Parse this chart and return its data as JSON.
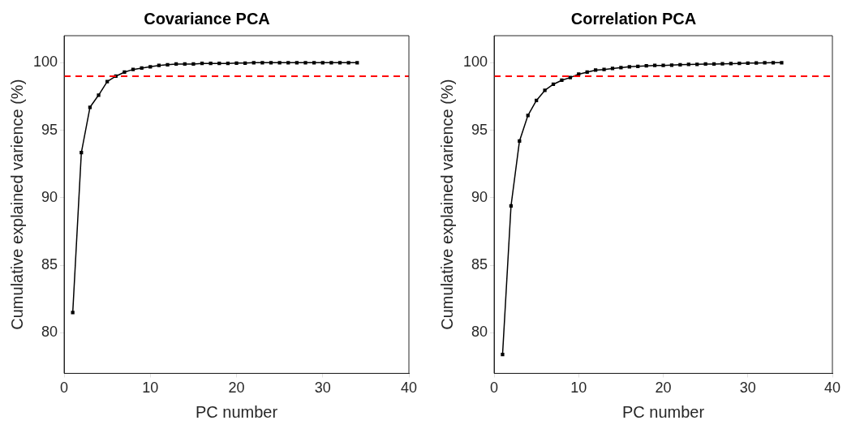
{
  "chart_data": [
    {
      "type": "line",
      "title": "Covariance PCA",
      "xlabel": "PC number",
      "ylabel": "Cumulative explained varience (%)",
      "x": [
        1,
        2,
        3,
        4,
        5,
        6,
        7,
        8,
        9,
        10,
        11,
        12,
        13,
        14,
        15,
        16,
        17,
        18,
        19,
        20,
        21,
        22,
        23,
        24,
        25,
        26,
        27,
        28,
        29,
        30,
        31,
        32,
        33,
        34
      ],
      "series": [
        {
          "color": "#000000",
          "values": [
            81.5,
            93.35,
            96.7,
            97.6,
            98.6,
            99.0,
            99.3,
            99.5,
            99.6,
            99.7,
            99.8,
            99.85,
            99.9,
            99.9,
            99.9,
            99.95,
            99.95,
            99.95,
            99.95,
            99.97,
            99.97,
            100,
            100,
            100,
            100,
            100,
            100,
            100,
            100,
            100,
            100,
            100,
            100,
            100
          ]
        }
      ],
      "xlim": [
        0,
        40
      ],
      "xticks": [
        0,
        10,
        20,
        30,
        40
      ],
      "ylim": [
        77,
        102
      ],
      "yticks": [
        80,
        85,
        90,
        95,
        100
      ],
      "ref_lines": [
        {
          "axis": "y",
          "value": 99,
          "color": "#ff0000",
          "line_style": "dashed"
        }
      ],
      "marker": "square",
      "line_style": "solid",
      "grid": false,
      "legend": false
    },
    {
      "type": "line",
      "title": "Correlation PCA",
      "xlabel": "PC number",
      "ylabel": "Cumulative explained varience (%)",
      "x": [
        1,
        2,
        3,
        4,
        5,
        6,
        7,
        8,
        9,
        10,
        11,
        12,
        13,
        14,
        15,
        16,
        17,
        18,
        19,
        20,
        21,
        22,
        23,
        24,
        25,
        26,
        27,
        28,
        29,
        30,
        31,
        32,
        33,
        34
      ],
      "series": [
        {
          "color": "#000000",
          "values": [
            78.4,
            89.4,
            94.2,
            96.1,
            97.2,
            97.95,
            98.4,
            98.7,
            98.9,
            99.15,
            99.3,
            99.45,
            99.5,
            99.57,
            99.63,
            99.7,
            99.73,
            99.77,
            99.8,
            99.8,
            99.82,
            99.85,
            99.87,
            99.88,
            99.9,
            99.9,
            99.92,
            99.93,
            99.95,
            99.97,
            99.98,
            99.99,
            100,
            100
          ]
        }
      ],
      "xlim": [
        0,
        40
      ],
      "xticks": [
        0,
        10,
        20,
        30,
        40
      ],
      "ylim": [
        77,
        102
      ],
      "yticks": [
        80,
        85,
        90,
        95,
        100
      ],
      "ref_lines": [
        {
          "axis": "y",
          "value": 99,
          "color": "#ff0000",
          "line_style": "dashed"
        }
      ],
      "marker": "square",
      "line_style": "solid",
      "grid": false,
      "legend": false
    }
  ]
}
